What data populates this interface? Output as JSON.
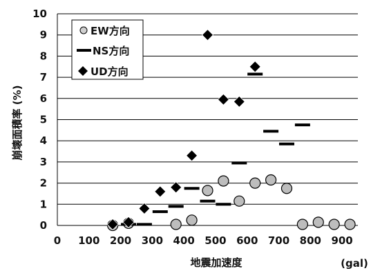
{
  "chart_data": {
    "type": "scatter",
    "xlabel": "地震加速度",
    "xunit": "(gal)",
    "ylabel": "崩壊面積率 (%)",
    "xlim": [
      0,
      950
    ],
    "ylim": [
      0,
      10
    ],
    "xticks": [
      0,
      100,
      200,
      300,
      400,
      500,
      600,
      700,
      800,
      900
    ],
    "yticks": [
      0,
      1,
      2,
      3,
      4,
      5,
      6,
      7,
      8,
      9,
      10
    ],
    "grid": "horizontal",
    "legend_position": "top-left",
    "series": [
      {
        "name": "EW方向",
        "marker": "circle",
        "color": "#bdbdbd",
        "points": [
          [
            175,
            0
          ],
          [
            225,
            0.1
          ],
          [
            375,
            0.05
          ],
          [
            425,
            0.25
          ],
          [
            475,
            1.65
          ],
          [
            525,
            2.1
          ],
          [
            575,
            1.15
          ],
          [
            625,
            2.0
          ],
          [
            675,
            2.15
          ],
          [
            725,
            1.75
          ],
          [
            775,
            0.05
          ],
          [
            825,
            0.15
          ],
          [
            875,
            0.05
          ],
          [
            925,
            0.05
          ]
        ]
      },
      {
        "name": "NS方向",
        "marker": "dash",
        "color": "#000000",
        "points": [
          [
            225,
            0.05
          ],
          [
            275,
            0.05
          ],
          [
            325,
            0.65
          ],
          [
            375,
            0.9
          ],
          [
            425,
            1.75
          ],
          [
            475,
            1.15
          ],
          [
            525,
            1.0
          ],
          [
            575,
            2.95
          ],
          [
            625,
            7.15
          ],
          [
            675,
            4.45
          ],
          [
            725,
            3.85
          ],
          [
            775,
            4.75
          ]
        ]
      },
      {
        "name": "UD方向",
        "marker": "diamond",
        "color": "#000000",
        "points": [
          [
            175,
            0.05
          ],
          [
            225,
            0.15
          ],
          [
            275,
            0.8
          ],
          [
            325,
            1.6
          ],
          [
            375,
            1.8
          ],
          [
            425,
            3.3
          ],
          [
            475,
            9.0
          ],
          [
            525,
            5.95
          ],
          [
            575,
            5.85
          ],
          [
            625,
            7.5
          ]
        ]
      }
    ]
  }
}
